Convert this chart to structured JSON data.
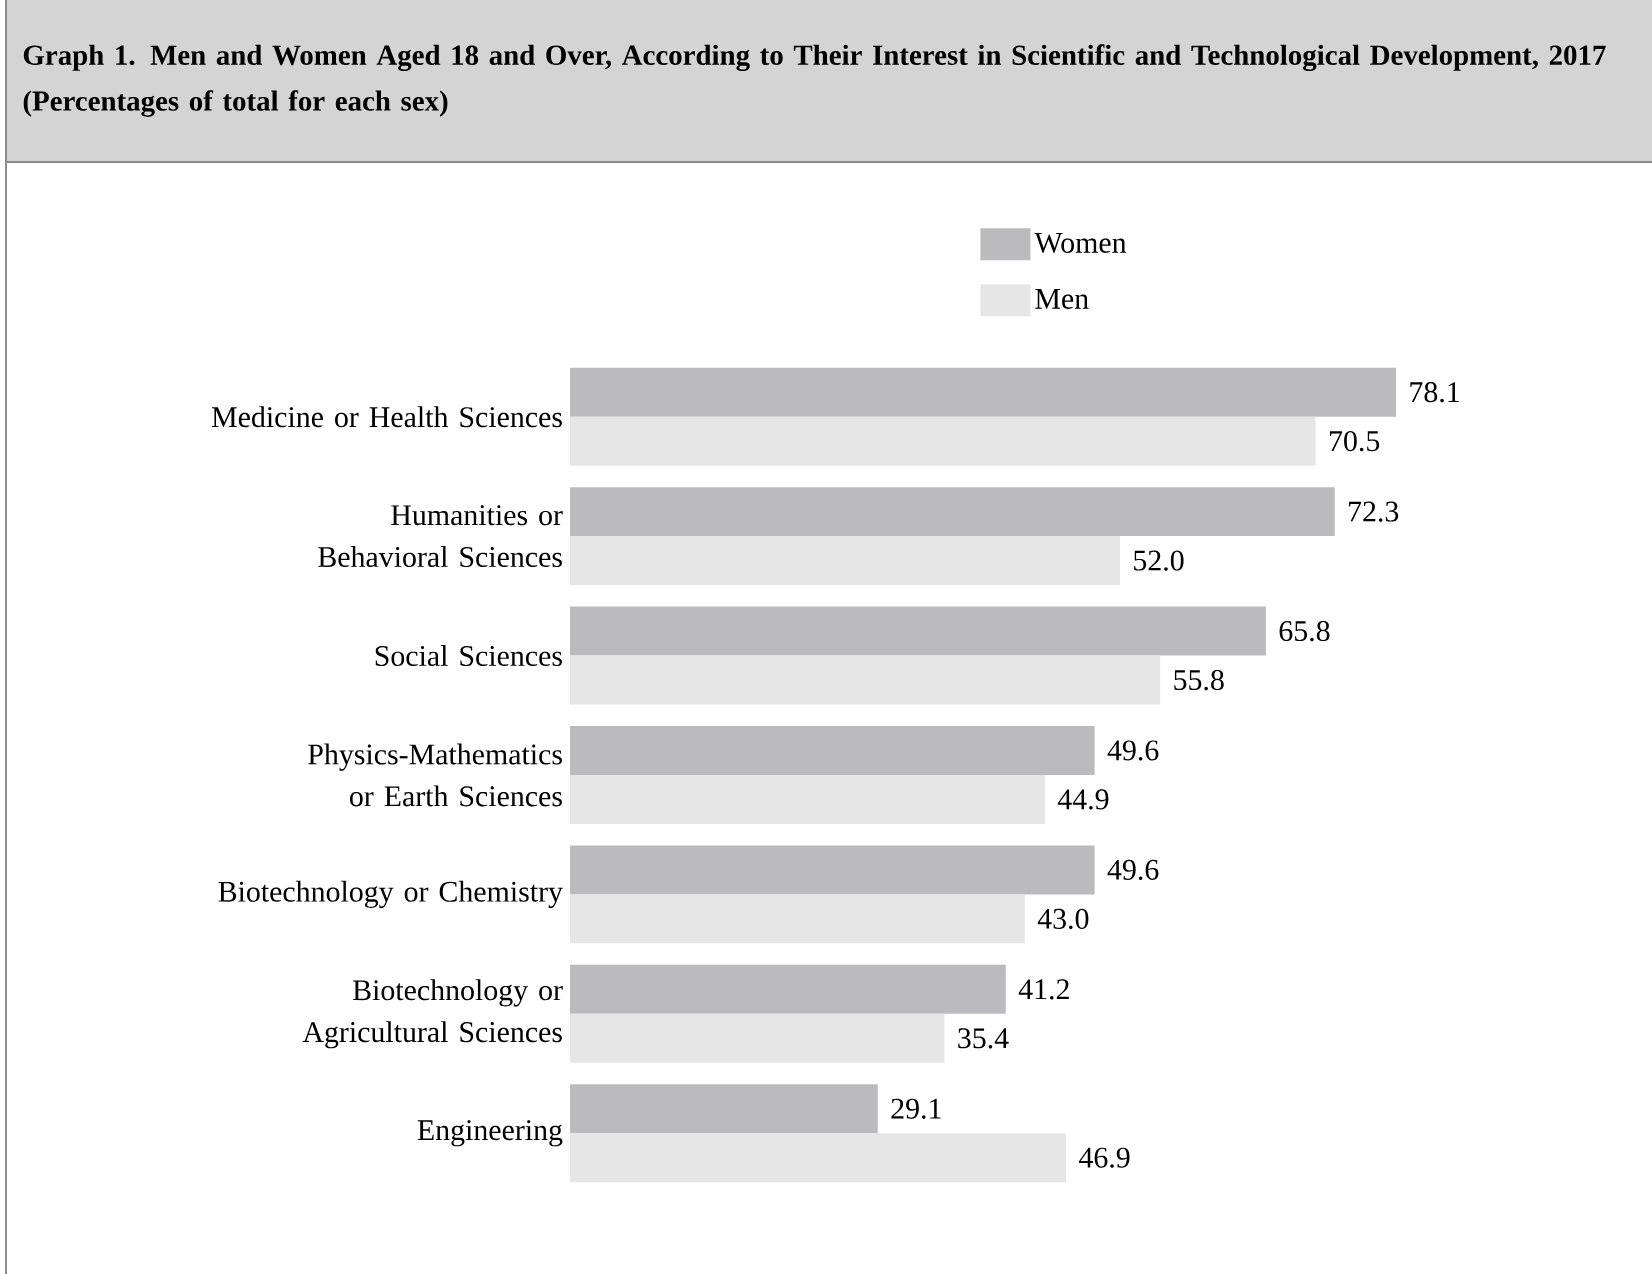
{
  "chart_data": {
    "type": "bar",
    "orientation": "horizontal",
    "title": "Graph 1. Men and Women Aged 18 and Over, According to Their Interest in Scientific and Technological Development, 2017 (Percentages of total for each sex)",
    "categories": [
      "Medicine or Health Sciences",
      "Humanities or Behavioral Sciences",
      "Social Sciences",
      "Physics-Mathematics or Earth Sciences",
      "Biotechnology or Chemistry",
      "Biotechnology or Agricultural Sciences",
      "Engineering"
    ],
    "series": [
      {
        "name": "Women",
        "color": "#bbbbbe",
        "values": [
          78.1,
          72.3,
          65.8,
          49.6,
          49.6,
          41.2,
          29.1
        ],
        "value_labels": [
          "78.1",
          "72.3",
          "65.8",
          "49.6",
          "49.6",
          "41.2",
          "29.1"
        ]
      },
      {
        "name": "Men",
        "color": "#e6e6e7",
        "values": [
          70.5,
          52.0,
          55.8,
          44.9,
          43.0,
          35.4,
          46.9
        ],
        "value_labels": [
          "70.5",
          "52.0",
          "55.8",
          "44.9",
          "43.0",
          "35.4",
          "46.9"
        ]
      }
    ],
    "legend": "top"
  }
}
